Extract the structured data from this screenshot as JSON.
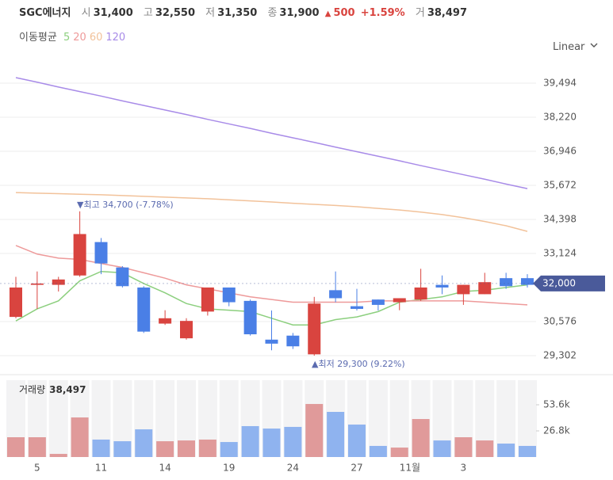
{
  "header": {
    "name": "SGC에너지",
    "open_label": "시",
    "open": "31,400",
    "high_label": "고",
    "high": "32,550",
    "low_label": "저",
    "low": "31,350",
    "close_label": "종",
    "close": "31,900",
    "change_arrow": "▲",
    "change": "500",
    "change_pct": "+1.59%",
    "volume_label": "거",
    "volume": "38,497"
  },
  "ma_legend_label": "이동평균",
  "scale_mode": "Linear",
  "chart_data": {
    "type": "candlestick",
    "categories": [
      null,
      "5",
      null,
      null,
      "11",
      null,
      null,
      "14",
      null,
      null,
      "19",
      null,
      null,
      "24",
      null,
      null,
      "27",
      null,
      "11월",
      null,
      null,
      "3",
      null,
      null,
      null
    ],
    "open": [
      30750,
      31950,
      31950,
      32300,
      33550,
      32600,
      31850,
      30500,
      29950,
      30950,
      31850,
      31350,
      29900,
      30050,
      29350,
      31750,
      31150,
      31400,
      31300,
      31400,
      31950,
      31600,
      31600,
      32200,
      32200
    ],
    "high": [
      32250,
      32450,
      32250,
      34700,
      33700,
      32650,
      31900,
      31000,
      30700,
      31850,
      31850,
      31400,
      30990,
      30150,
      31500,
      32450,
      31800,
      31400,
      31450,
      32550,
      32300,
      31950,
      32400,
      32400,
      32350
    ],
    "low": [
      30700,
      31050,
      31700,
      32250,
      32350,
      31850,
      30150,
      30450,
      29900,
      30800,
      31150,
      30050,
      29500,
      29550,
      29300,
      31300,
      30990,
      30990,
      31000,
      31350,
      31600,
      31200,
      31600,
      31800,
      31850
    ],
    "close": [
      31850,
      32000,
      32150,
      33850,
      32750,
      31900,
      30200,
      30700,
      30600,
      31850,
      31300,
      30100,
      29750,
      29650,
      31250,
      31450,
      31050,
      31200,
      31450,
      31850,
      31850,
      31950,
      32050,
      31900,
      31950
    ],
    "up_color": "#d9443f",
    "down_color": "#4a7fe6",
    "moving_averages": [
      {
        "name": "5",
        "color": "#8ccf7e",
        "values": [
          30600,
          31050,
          31350,
          32100,
          32450,
          32400,
          32000,
          31650,
          31250,
          31050,
          31000,
          30950,
          30700,
          30450,
          30450,
          30650,
          30750,
          30950,
          31300,
          31400,
          31500,
          31700,
          31750,
          31850,
          31950
        ]
      },
      {
        "name": "20",
        "color": "#ee9a9a",
        "values": [
          33420,
          33100,
          32950,
          32900,
          32750,
          32600,
          32400,
          32200,
          31950,
          31800,
          31650,
          31500,
          31400,
          31300,
          31300,
          31300,
          31300,
          31350,
          31350,
          31350,
          31350,
          31350,
          31300,
          31250,
          31200
        ]
      },
      {
        "name": "60",
        "color": "#f2c29a",
        "values": [
          35400,
          35380,
          35360,
          35340,
          35320,
          35290,
          35260,
          35230,
          35200,
          35170,
          35130,
          35090,
          35050,
          35000,
          34960,
          34920,
          34870,
          34810,
          34750,
          34670,
          34580,
          34460,
          34320,
          34160,
          33950
        ]
      },
      {
        "name": "120",
        "color": "#a88be8",
        "values": [
          39700,
          39530,
          39350,
          39180,
          39010,
          38830,
          38660,
          38490,
          38320,
          38140,
          37970,
          37800,
          37620,
          37450,
          37280,
          37100,
          36930,
          36760,
          36590,
          36410,
          36240,
          36070,
          35900,
          35720,
          35550
        ]
      }
    ],
    "ylim": [
      28679,
      40827
    ],
    "yticks": [
      {
        "value": 39494,
        "label": "39,494"
      },
      {
        "value": 38220,
        "label": "38,220"
      },
      {
        "value": 36946,
        "label": "36,946"
      },
      {
        "value": 35672,
        "label": "35,672"
      },
      {
        "value": 34398,
        "label": "34,398"
      },
      {
        "value": 33124,
        "label": "33,124"
      },
      {
        "value": 30576,
        "label": "30,576"
      },
      {
        "value": 29302,
        "label": "29,302"
      }
    ],
    "grid": true,
    "current_price": {
      "value": 32000,
      "label": "32,000"
    },
    "max_annotation": "▼최고 34,700 (-7.78%)",
    "min_annotation": "▲최저 29,300 (9.22%)",
    "volume_title": "거래량",
    "volume_total": "38,497",
    "volume": [
      20300,
      20300,
      3200,
      40600,
      17900,
      16200,
      28400,
      16200,
      17000,
      17900,
      15400,
      31700,
      29200,
      30900,
      54400,
      46300,
      33300,
      11400,
      9700,
      39000,
      17000,
      20300,
      17000,
      13800,
      11400
    ],
    "volume_up_color": "#e09a9a",
    "volume_down_color": "#8fb3ef",
    "volume_ylim": [
      0,
      78800
    ],
    "volume_ticks": [
      {
        "value": 53600,
        "label": "53.6k"
      },
      {
        "value": 26800,
        "label": "26.8k"
      }
    ]
  }
}
